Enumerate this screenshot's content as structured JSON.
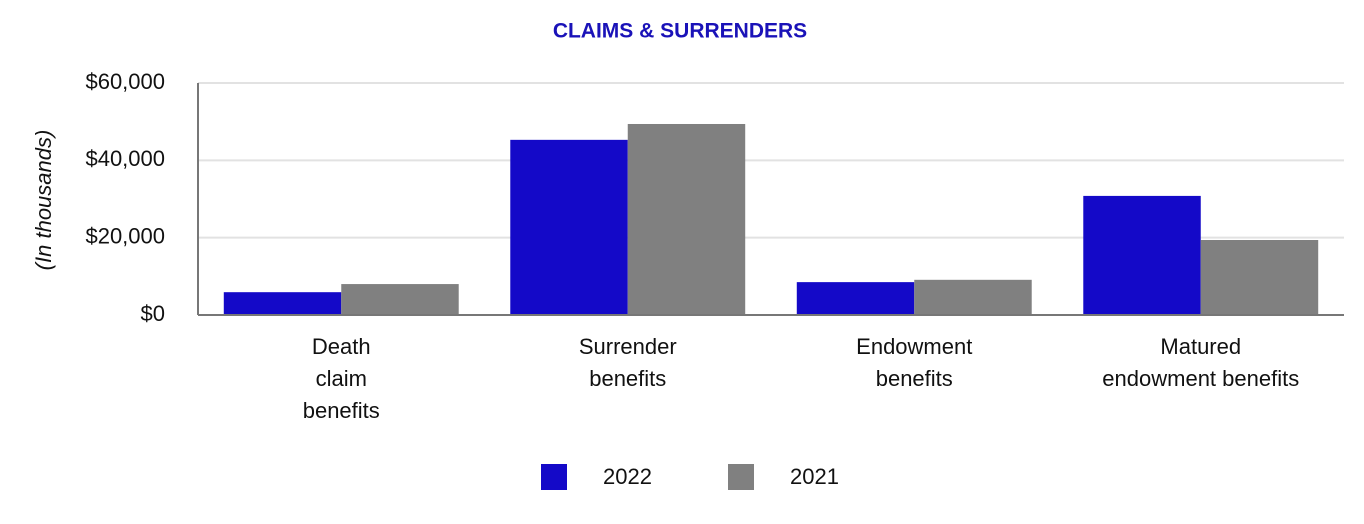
{
  "chart_data": {
    "type": "bar",
    "title": "CLAIMS & SURRENDERS",
    "y_label": "(In thousands)",
    "categories": [
      "Death\nclaim\nbenefits",
      "Surrender\nbenefits",
      "Endowment\nbenefits",
      "Matured\nendowment benefits"
    ],
    "series": [
      {
        "name": "2022",
        "color": "#1409c8",
        "values": [
          5900,
          45300,
          8500,
          30800
        ]
      },
      {
        "name": "2021",
        "color": "#808080",
        "values": [
          8000,
          49400,
          9100,
          19400
        ]
      }
    ],
    "ylim": [
      0,
      60000
    ],
    "yticks": [
      {
        "value": 0,
        "label": "$0"
      },
      {
        "value": 20000,
        "label": "$20,000"
      },
      {
        "value": 40000,
        "label": "$40,000"
      },
      {
        "value": 60000,
        "label": "$60,000"
      }
    ],
    "grid": true
  }
}
